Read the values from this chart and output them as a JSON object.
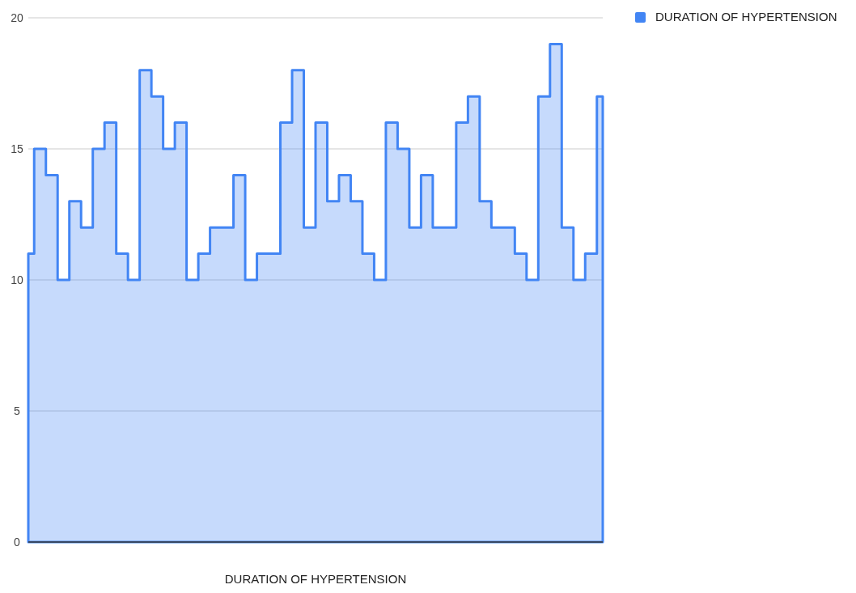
{
  "chart_data": {
    "type": "area",
    "xlabel": "DURATION OF HYPERTENSION",
    "categories": [
      null,
      null,
      null,
      null,
      null,
      null,
      null,
      null,
      null,
      null,
      null,
      null,
      null,
      null,
      null,
      null,
      null,
      null,
      null,
      null,
      null,
      null,
      null,
      null,
      null,
      null,
      null,
      null,
      null,
      null,
      null,
      null,
      null,
      null,
      null,
      null,
      null,
      null,
      null,
      null,
      null,
      null,
      null,
      null,
      null,
      null,
      null,
      null,
      null,
      null
    ],
    "series": [
      {
        "name": "DURATION OF HYPERTENSION",
        "color": "#4285f4",
        "values": [
          11,
          15,
          14,
          10,
          13,
          12,
          15,
          16,
          11,
          10,
          18,
          17,
          15,
          16,
          10,
          11,
          12,
          12,
          14,
          10,
          11,
          11,
          16,
          18,
          12,
          16,
          13,
          14,
          13,
          11,
          10,
          16,
          15,
          12,
          14,
          12,
          12,
          16,
          17,
          13,
          12,
          12,
          11,
          10,
          17,
          19,
          12,
          10,
          11,
          17
        ]
      }
    ],
    "ylim": [
      0,
      20
    ],
    "yticks": [
      0,
      5,
      10,
      15,
      20
    ],
    "grid": "y",
    "legend": "top right"
  }
}
